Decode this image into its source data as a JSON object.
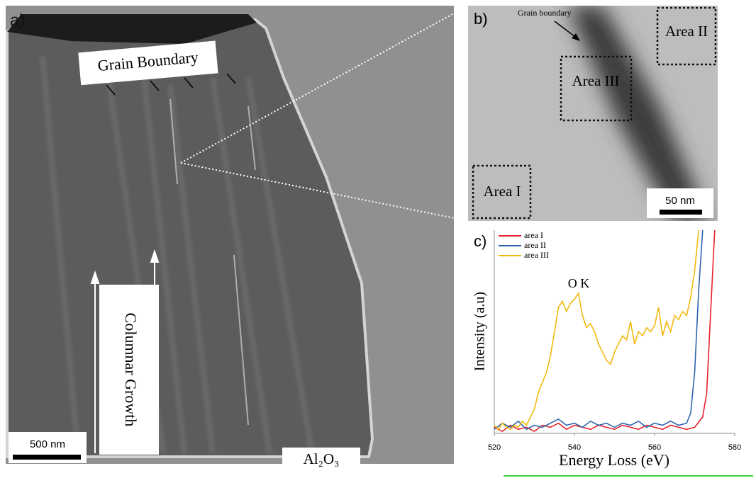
{
  "panel_a": {
    "label": "a)",
    "annotation": "Grain Boundary",
    "growth_label": "Columnar Growth",
    "scale_bar": "500 nm",
    "substrate": "Al₂O₃"
  },
  "panel_b": {
    "label": "b)",
    "annotation": "Grain boundary",
    "areas": [
      "Area I",
      "Area II",
      "Area III"
    ],
    "scale_bar": "50 nm"
  },
  "chart_data": {
    "type": "line",
    "label": "c)",
    "annotation": "O K",
    "x_label": "Energy Loss  (eV)",
    "y_label": "Intensity (a.u)",
    "xlim": [
      520,
      580
    ],
    "xticks": [
      520,
      540,
      560,
      580
    ],
    "ylim": [
      0,
      100
    ],
    "legend": "upper left",
    "series": [
      {
        "name": "area I",
        "color": "#e8212b",
        "x": [
          520,
          522,
          524,
          526,
          528,
          530,
          532,
          534,
          536,
          538,
          540,
          542,
          544,
          546,
          548,
          550,
          552,
          554,
          556,
          558,
          560,
          562,
          564,
          566,
          568,
          570,
          572,
          573,
          574,
          575
        ],
        "values": [
          3,
          1,
          4,
          2,
          3,
          1,
          4,
          3,
          5,
          2,
          4,
          3,
          2,
          4,
          3,
          2,
          4,
          3,
          2,
          4,
          3,
          2,
          4,
          3,
          2,
          3,
          8,
          20,
          60,
          100
        ]
      },
      {
        "name": "area II",
        "color": "#2e64b0",
        "x": [
          520,
          522,
          524,
          526,
          528,
          530,
          532,
          534,
          536,
          538,
          540,
          542,
          544,
          546,
          548,
          550,
          552,
          554,
          556,
          558,
          560,
          562,
          564,
          566,
          568,
          569,
          570,
          571,
          572
        ],
        "values": [
          2,
          5,
          3,
          6,
          2,
          4,
          3,
          5,
          7,
          4,
          5,
          3,
          6,
          4,
          5,
          3,
          5,
          4,
          6,
          3,
          5,
          4,
          6,
          4,
          5,
          10,
          30,
          70,
          100
        ]
      },
      {
        "name": "area III",
        "color": "#f2b90f",
        "x": [
          520,
          521,
          522,
          523,
          524,
          525,
          526,
          527,
          528,
          529,
          530,
          531,
          532,
          533,
          534,
          535,
          536,
          537,
          538,
          539,
          540,
          541,
          542,
          543,
          544,
          545,
          546,
          547,
          548,
          549,
          550,
          551,
          552,
          553,
          554,
          555,
          556,
          557,
          558,
          559,
          560,
          561,
          562,
          563,
          564,
          565,
          566,
          567,
          568,
          569,
          570,
          571
        ],
        "values": [
          4,
          2,
          5,
          3,
          2,
          4,
          3,
          6,
          4,
          8,
          12,
          20,
          25,
          30,
          38,
          50,
          62,
          65,
          60,
          64,
          66,
          69,
          58,
          52,
          54,
          50,
          44,
          40,
          36,
          34,
          40,
          44,
          48,
          46,
          55,
          44,
          50,
          48,
          52,
          50,
          53,
          62,
          48,
          55,
          50,
          58,
          56,
          60,
          58,
          67,
          80,
          100
        ]
      }
    ]
  }
}
